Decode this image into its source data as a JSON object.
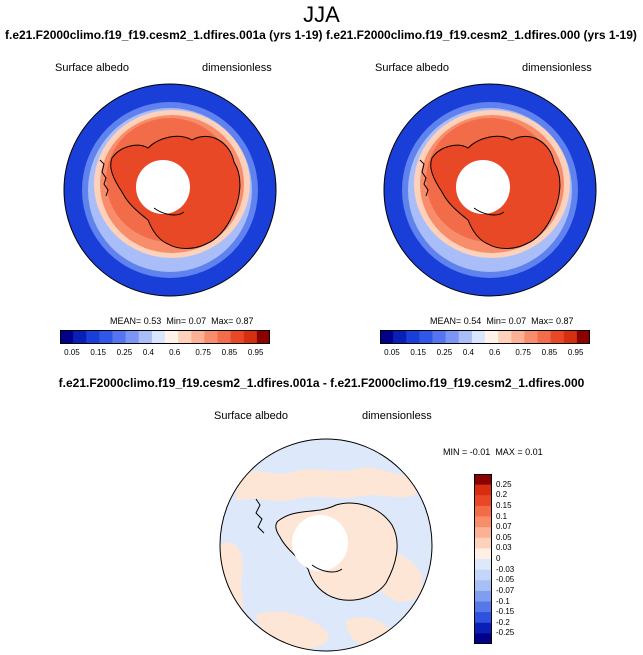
{
  "season": "JJA",
  "colors": {
    "coastline": "#000000",
    "frame": "#000000",
    "ocean_blue": "#1a3fd8",
    "pole_hole": "#ffffff"
  },
  "panels": [
    {
      "id": "case_a",
      "title": "f.e21.F2000climo.f19_f19.cesm2_1.dfires.001a (yrs 1-19)",
      "variable": "Surface albedo",
      "units": "dimensionless",
      "stats": {
        "mean_label": "MEAN=",
        "mean": "0.53",
        "min_label": "Min=",
        "min": "0.07",
        "max_label": "Max=",
        "max": "0.87"
      }
    },
    {
      "id": "case_b",
      "title": "f.e21.F2000climo.f19_f19.cesm2_1.dfires.000 (yrs 1-19)",
      "variable": "Surface albedo",
      "units": "dimensionless",
      "stats": {
        "mean_label": "MEAN=",
        "mean": "0.54",
        "min_label": "Min=",
        "min": "0.07",
        "max_label": "Max=",
        "max": "0.87"
      }
    }
  ],
  "diff_panel": {
    "title": "f.e21.F2000climo.f19_f19.cesm2_1.dfires.001a - f.e21.F2000climo.f19_f19.cesm2_1.dfires.000",
    "variable": "Surface albedo",
    "units": "dimensionless",
    "stats": {
      "min_label": "MIN =",
      "min": "-0.01",
      "max_label": "MAX =",
      "max": "0.01"
    }
  },
  "chart_data": [
    {
      "type": "heatmap",
      "projection": "south-polar stereographic",
      "title": "f.e21.F2000climo.f19_f19.cesm2_1.dfires.001a (yrs 1-19)",
      "variable": "Surface albedo",
      "units": "dimensionless",
      "mean": 0.53,
      "min": 0.07,
      "max": 0.87,
      "colorbar": {
        "orientation": "horizontal",
        "levels": [
          0.05,
          0.1,
          0.15,
          0.2,
          0.25,
          0.3,
          0.4,
          0.5,
          0.6,
          0.7,
          0.75,
          0.8,
          0.85,
          0.9,
          0.95
        ],
        "tick_labels": [
          "0.05",
          "0.15",
          "0.25",
          "0.4",
          "0.6",
          "0.75",
          "0.85",
          "0.95"
        ],
        "colors": [
          "#00008b",
          "#0a1fb5",
          "#1a3fd8",
          "#3057e8",
          "#5575f0",
          "#7b95f5",
          "#a9bef9",
          "#d9e6fd",
          "#fff4ea",
          "#fdd1ba",
          "#fbb193",
          "#f88d6c",
          "#f36c49",
          "#e84826",
          "#d62e10",
          "#8b0000"
        ]
      }
    },
    {
      "type": "heatmap",
      "projection": "south-polar stereographic",
      "title": "f.e21.F2000climo.f19_f19.cesm2_1.dfires.000 (yrs 1-19)",
      "variable": "Surface albedo",
      "units": "dimensionless",
      "mean": 0.54,
      "min": 0.07,
      "max": 0.87,
      "colorbar": {
        "orientation": "horizontal",
        "levels": [
          0.05,
          0.1,
          0.15,
          0.2,
          0.25,
          0.3,
          0.4,
          0.5,
          0.6,
          0.7,
          0.75,
          0.8,
          0.85,
          0.9,
          0.95
        ],
        "tick_labels": [
          "0.05",
          "0.15",
          "0.25",
          "0.4",
          "0.6",
          "0.75",
          "0.85",
          "0.95"
        ],
        "colors": [
          "#00008b",
          "#0a1fb5",
          "#1a3fd8",
          "#3057e8",
          "#5575f0",
          "#7b95f5",
          "#a9bef9",
          "#d9e6fd",
          "#fff4ea",
          "#fdd1ba",
          "#fbb193",
          "#f88d6c",
          "#f36c49",
          "#e84826",
          "#d62e10",
          "#8b0000"
        ]
      }
    },
    {
      "type": "heatmap",
      "projection": "south-polar stereographic",
      "title": "f.e21.F2000climo.f19_f19.cesm2_1.dfires.001a - f.e21.F2000climo.f19_f19.cesm2_1.dfires.000",
      "variable": "Surface albedo",
      "units": "dimensionless",
      "min": -0.01,
      "max": 0.01,
      "colorbar": {
        "orientation": "vertical",
        "tick_labels": [
          "0.25",
          "0.2",
          "0.15",
          "0.1",
          "0.07",
          "0.05",
          "0.03",
          "0",
          "-0.03",
          "-0.05",
          "-0.07",
          "-0.1",
          "-0.15",
          "-0.2",
          "-0.25"
        ],
        "colors": [
          "#8b0000",
          "#d62e10",
          "#e84826",
          "#f36c49",
          "#f88d6c",
          "#fbb193",
          "#fdd1ba",
          "#fff0e3",
          "#dde9fb",
          "#c3d5f8",
          "#a7bff4",
          "#7f9eef",
          "#5577e8",
          "#2f52de",
          "#0a1fb5",
          "#00008b"
        ]
      }
    }
  ]
}
